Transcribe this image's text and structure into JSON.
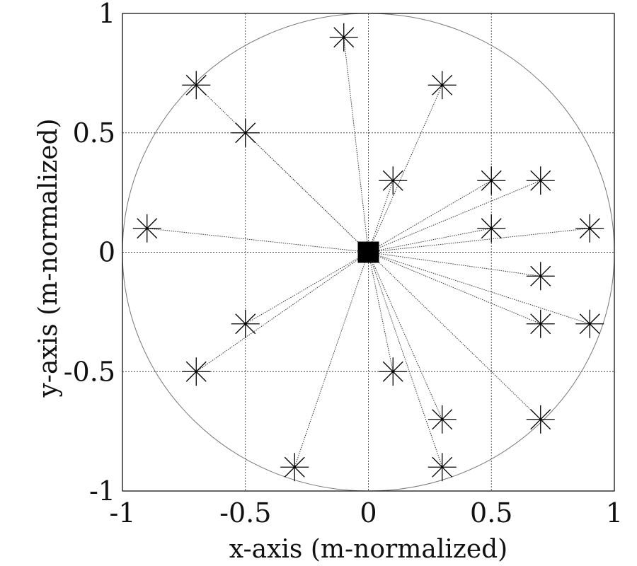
{
  "chart_data": {
    "type": "scatter",
    "title": "",
    "xlabel": "x-axis (m-normalized)",
    "ylabel": "y-axis (m-normalized)",
    "xlim": [
      -1,
      1
    ],
    "ylim": [
      -1,
      1
    ],
    "xticks": [
      -1,
      -0.5,
      0,
      0.5,
      1
    ],
    "yticks": [
      -1,
      -0.5,
      0,
      0.5,
      1
    ],
    "xtick_labels": [
      "-1",
      "-0.5",
      "0",
      "0.5",
      "1"
    ],
    "ytick_labels": [
      "-1",
      "-0.5",
      "0",
      "0.5",
      "1"
    ],
    "grid": true,
    "boundary_circle_radius": 1,
    "center": {
      "x": 0,
      "y": 0,
      "marker": "square"
    },
    "points": [
      {
        "x": -0.1,
        "y": 0.9
      },
      {
        "x": -0.7,
        "y": 0.7
      },
      {
        "x": 0.3,
        "y": 0.7
      },
      {
        "x": -0.5,
        "y": 0.5
      },
      {
        "x": 0.1,
        "y": 0.3
      },
      {
        "x": 0.5,
        "y": 0.3
      },
      {
        "x": 0.7,
        "y": 0.3
      },
      {
        "x": -0.9,
        "y": 0.1
      },
      {
        "x": 0.5,
        "y": 0.1
      },
      {
        "x": 0.9,
        "y": 0.1
      },
      {
        "x": 0.7,
        "y": -0.1
      },
      {
        "x": -0.5,
        "y": -0.3
      },
      {
        "x": 0.7,
        "y": -0.3
      },
      {
        "x": 0.9,
        "y": -0.3
      },
      {
        "x": -0.7,
        "y": -0.5
      },
      {
        "x": 0.1,
        "y": -0.5
      },
      {
        "x": 0.3,
        "y": -0.7
      },
      {
        "x": 0.7,
        "y": -0.7
      },
      {
        "x": -0.3,
        "y": -0.9
      },
      {
        "x": 0.3,
        "y": -0.9
      }
    ],
    "colors": {
      "marker": "#000000",
      "grid": "#444444",
      "circle": "#777777",
      "link": "#333333"
    }
  }
}
